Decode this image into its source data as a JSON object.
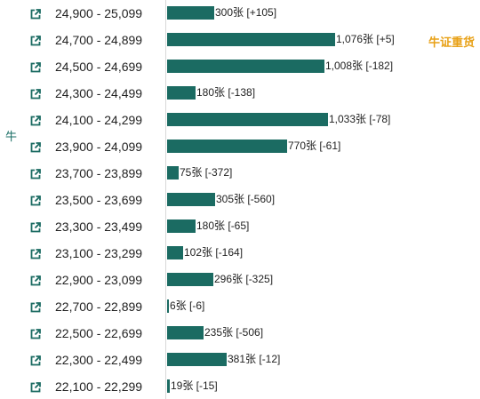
{
  "chart_data": {
    "type": "bar",
    "orientation": "horizontal",
    "side_label": "牛",
    "categories": [
      "24,900 - 25,099",
      "24,700 - 24,899",
      "24,500 - 24,699",
      "24,300 - 24,499",
      "24,100 - 24,299",
      "23,900 - 24,099",
      "23,700 - 23,899",
      "23,500 - 23,699",
      "23,300 - 23,499",
      "23,100 - 23,299",
      "22,900 - 23,099",
      "22,700 - 22,899",
      "22,500 - 22,699",
      "22,300 - 22,499",
      "22,100 - 22,299"
    ],
    "values": [
      300,
      1076,
      1008,
      180,
      1033,
      770,
      75,
      305,
      180,
      102,
      296,
      6,
      235,
      381,
      19
    ],
    "value_labels": [
      "300张 [+105]",
      "1,076张 [+5]",
      "1,008张 [-182]",
      "180张 [-138]",
      "1,033张 [-78]",
      "770张 [-61]",
      "75张 [-372]",
      "305张 [-560]",
      "180张 [-65]",
      "102张 [-164]",
      "296张 [-325]",
      "6张 [-6]",
      "235张 [-506]",
      "381张 [-12]",
      "19张 [-15]"
    ],
    "tags": [
      {
        "row": 1,
        "text": "牛证重货"
      }
    ],
    "bar_color": "#1b6b62",
    "tag_color": "#e8a117",
    "icon": "external-link-icon"
  }
}
